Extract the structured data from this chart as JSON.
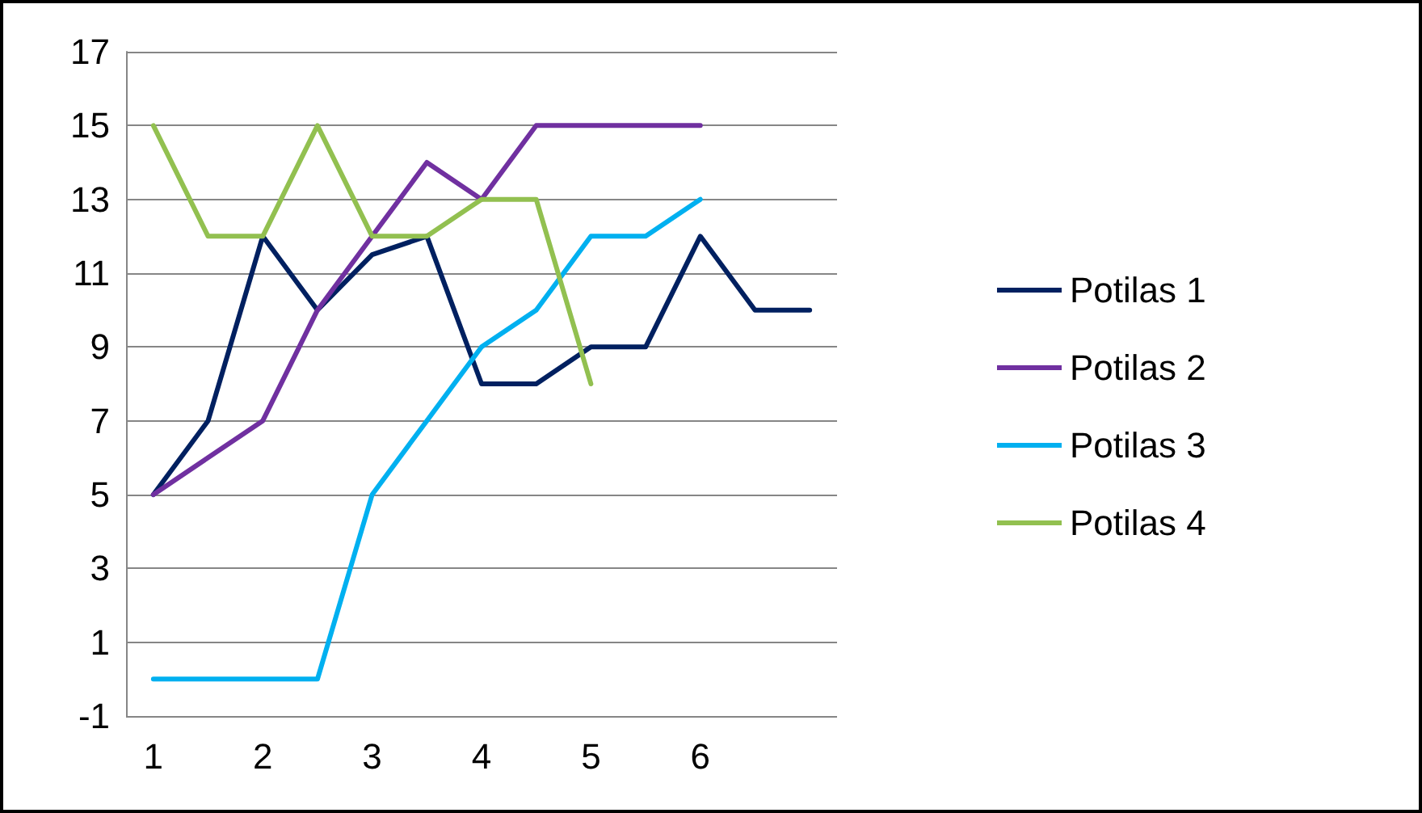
{
  "chart_data": {
    "type": "line",
    "categories": [
      "1",
      null,
      "2",
      null,
      "3",
      null,
      "4",
      null,
      "5",
      null,
      "6",
      null,
      null
    ],
    "ylim": [
      -1,
      17
    ],
    "yticks": [
      -1,
      1,
      3,
      5,
      7,
      9,
      11,
      13,
      15,
      17
    ],
    "grid": "y",
    "legend": "right",
    "marker": "none",
    "line_style": "solid",
    "series": [
      {
        "name": "Potilas 1",
        "color": "#002060",
        "values": [
          5,
          7,
          12,
          10,
          11.5,
          12,
          8,
          8,
          9,
          9,
          12,
          10,
          10
        ]
      },
      {
        "name": "Potilas 2",
        "color": "#7030a0",
        "values": [
          5,
          6,
          7,
          10,
          12,
          14,
          13,
          15,
          15,
          15,
          15,
          null,
          null
        ]
      },
      {
        "name": "Potilas 3",
        "color": "#00b0f0",
        "values": [
          0,
          0,
          0,
          0,
          5,
          7,
          9,
          10,
          12,
          12,
          13,
          null,
          null
        ]
      },
      {
        "name": "Potilas 4",
        "color": "#92c050",
        "values": [
          15,
          12,
          12,
          15,
          12,
          12,
          13,
          13,
          8,
          null,
          null,
          null,
          null
        ]
      }
    ]
  }
}
